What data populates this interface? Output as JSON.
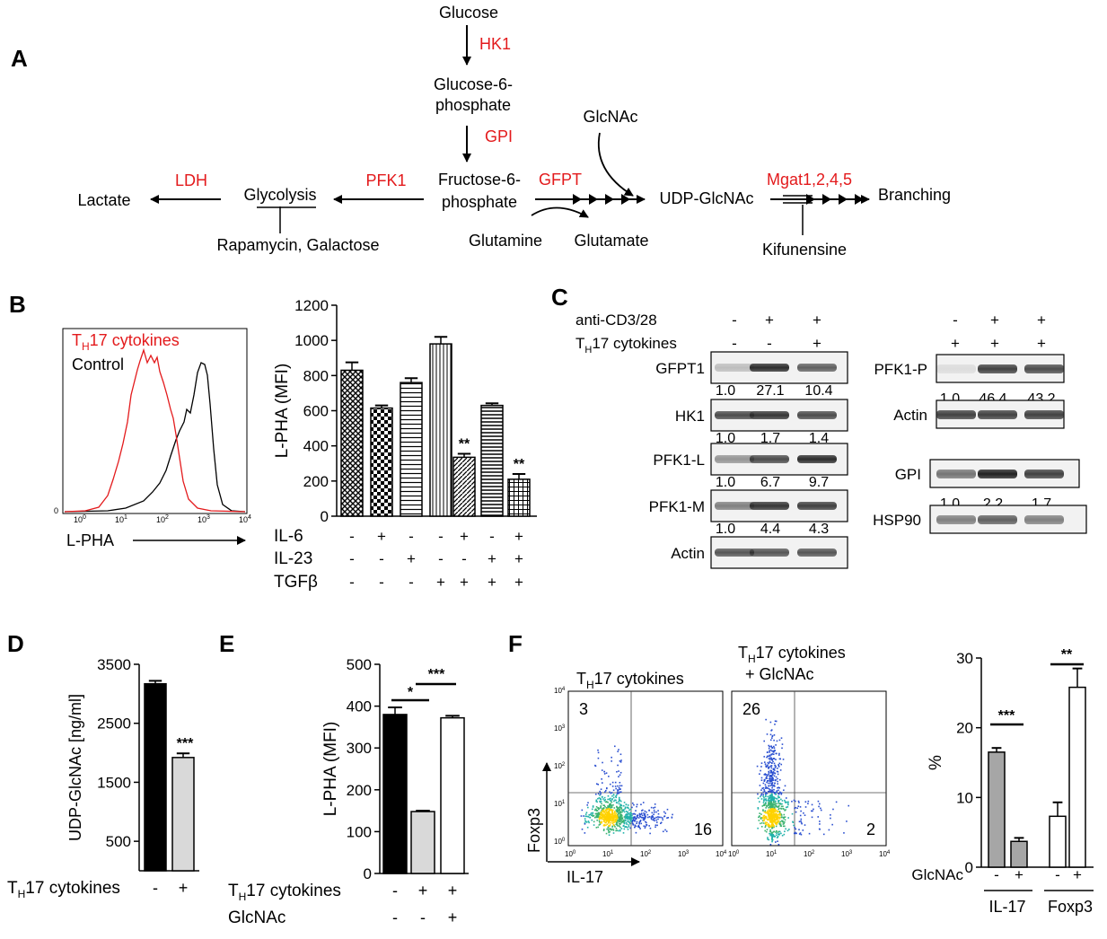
{
  "panelA": {
    "label": "A",
    "glucose": "Glucose",
    "hk1": "HK1",
    "g6p_1": "Glucose-6-",
    "g6p_2": "phosphate",
    "gpi": "GPI",
    "f6p_1": "Fructose-6-",
    "f6p_2": "phosphate",
    "glcnac": "GlcNAc",
    "gfpt": "GFPT",
    "udp": "UDP-GlcNAc",
    "mgat": "Mgat1,2,4,5",
    "branching": "Branching",
    "pfk1": "PFK1",
    "glycolysis": "Glycolysis",
    "ldh": "LDH",
    "lactate": "Lactate",
    "rapa": "Rapamycin, Galactose",
    "glutamine": "Glutamine",
    "glutamate": "Glutamate",
    "kif": "Kifunensine",
    "colors": {
      "enzyme": "#e31a1c"
    }
  },
  "panelB": {
    "label": "B",
    "hist_legend_th17": "T",
    "hist_legend_th17_sub": "H",
    "hist_legend_th17_rest": "17 cytokines",
    "hist_legend_control": "Control",
    "hist_xlabel": "L-PHA",
    "hist_xticks": [
      {
        "base": "10",
        "exp": "0"
      },
      {
        "base": "10",
        "exp": "1"
      },
      {
        "base": "10",
        "exp": "2"
      },
      {
        "base": "10",
        "exp": "3"
      },
      {
        "base": "10",
        "exp": "4"
      }
    ],
    "hist_y0": "0",
    "rows": [
      {
        "name": "IL-6",
        "signs": [
          "-",
          "+",
          "-",
          "-",
          "+",
          "-",
          "+"
        ]
      },
      {
        "name": "IL-23",
        "signs": [
          "-",
          "-",
          "+",
          "-",
          "-",
          "+",
          "+"
        ]
      },
      {
        "name": "TGFβ",
        "signs": [
          "-",
          "-",
          "-",
          "+",
          "+",
          "+",
          "+"
        ]
      }
    ]
  },
  "panelC": {
    "label": "C",
    "cond_top": "anti-CD3/28",
    "cond_th_T": "T",
    "cond_th_H": "H",
    "cond_th_rest": "17 cytokines",
    "signs_left_top": [
      "-",
      "+",
      "+"
    ],
    "signs_left_bot": [
      "-",
      "-",
      "+"
    ],
    "signs_right_top": [
      "-",
      "+",
      "+"
    ],
    "signs_right_bot": [
      "+",
      "+",
      "+"
    ],
    "blots_left": [
      {
        "name": "GFPT1",
        "quant": [
          "1.0",
          "27.1",
          "10.4"
        ]
      },
      {
        "name": "HK1",
        "quant": [
          "1.0",
          "1.7",
          "1.4"
        ]
      },
      {
        "name": "PFK1-L",
        "quant": [
          "1.0",
          "6.7",
          "9.7"
        ]
      },
      {
        "name": "PFK1-M",
        "quant": [
          "1.0",
          "4.4",
          "4.3"
        ]
      },
      {
        "name": "Actin",
        "quant": []
      }
    ],
    "blots_right": [
      {
        "name": "PFK1-P",
        "quant": [
          "1.0",
          "46.4",
          "43.2"
        ]
      },
      {
        "name": "Actin",
        "quant": []
      },
      {
        "name": "GPI",
        "quant": [
          "1.0",
          "2.2",
          "1.7"
        ]
      },
      {
        "name": "HSP90",
        "quant": []
      }
    ]
  },
  "panelD": {
    "label": "D",
    "xrow_T": "T",
    "xrow_H": "H",
    "xrow_rest": "17 cytokines",
    "signs": [
      "-",
      "+"
    ],
    "sig": "***"
  },
  "panelE": {
    "label": "E",
    "row1_T": "T",
    "row1_H": "H",
    "row1_rest": "17 cytokines",
    "row2": "GlcNAc",
    "signs1": [
      "-",
      "+",
      "+"
    ],
    "signs2": [
      "-",
      "-",
      "+"
    ],
    "sig1": "*",
    "sig2": "***"
  },
  "panelF": {
    "label": "F",
    "plot1_T": "T",
    "plot1_H": "H",
    "plot1_rest": "17 cytokines",
    "plot2_T": "T",
    "plot2_H": "H",
    "plot2_rest": "17 cytokines",
    "plot2_l2": "+ GlcNAc",
    "p1_ul": "3",
    "p1_lr": "16",
    "p2_ul": "26",
    "p2_lr": "2",
    "ylab": "Foxp3",
    "xlab": "IL-17",
    "tick_base": "10",
    "tick_exps": [
      "0",
      "1",
      "2",
      "3",
      "4"
    ],
    "bar_row_label": "GlcNAc",
    "bar_signs": [
      "-",
      "+",
      "-",
      "+"
    ],
    "group1": "IL-17",
    "group2": "Foxp3",
    "sig1": "***",
    "sig2": "**"
  },
  "chart_data": [
    {
      "type": "bar",
      "categories": [
        "1",
        "2",
        "3",
        "4",
        "5",
        "6",
        "7"
      ],
      "values": [
        830,
        615,
        760,
        980,
        335,
        630,
        210
      ],
      "errors": [
        45,
        15,
        25,
        40,
        20,
        12,
        30
      ],
      "patterns": [
        "cross",
        "check",
        "hline",
        "vline",
        "diag",
        "hline2",
        "grid"
      ],
      "annotations": [
        {
          "index": 4,
          "text": "**"
        },
        {
          "index": 6,
          "text": "**"
        }
      ],
      "ylabel": "L-PHA (MFI)",
      "ylim": [
        0,
        1200
      ],
      "yticks": [
        "0",
        "200",
        "400",
        "600",
        "800",
        "1000",
        "1200"
      ]
    },
    {
      "type": "bar",
      "categories": [
        "-",
        "+"
      ],
      "values": [
        3170,
        1920
      ],
      "errors": [
        50,
        70
      ],
      "colors": [
        "#000000",
        "#d9d9d9"
      ],
      "ylabel": "UDP-GlcNAc [ng/ml]",
      "ylim": [
        0,
        3500
      ],
      "yticks": [
        "500",
        "1500",
        "2500",
        "3500"
      ]
    },
    {
      "type": "bar",
      "categories": [
        "1",
        "2",
        "3"
      ],
      "values": [
        380,
        148,
        372
      ],
      "errors": [
        17,
        2,
        5
      ],
      "colors": [
        "#000000",
        "#d9d9d9",
        "#ffffff"
      ],
      "ylabel": "L-PHA (MFI)",
      "ylim": [
        0,
        500
      ],
      "yticks": [
        "0",
        "100",
        "200",
        "300",
        "400",
        "500"
      ]
    },
    {
      "type": "bar",
      "categories": [
        "IL-17 -",
        "IL-17 +",
        "Foxp3 -",
        "Foxp3 +"
      ],
      "values": [
        16.5,
        3.7,
        7.3,
        25.8
      ],
      "errors": [
        0.6,
        0.5,
        2.0,
        2.7
      ],
      "colors": [
        "#a6a6a6",
        "#a6a6a6",
        "#ffffff",
        "#ffffff"
      ],
      "ylabel": "%",
      "ylim": [
        0,
        30
      ],
      "yticks": [
        "0",
        "10",
        "20",
        "30"
      ]
    }
  ]
}
